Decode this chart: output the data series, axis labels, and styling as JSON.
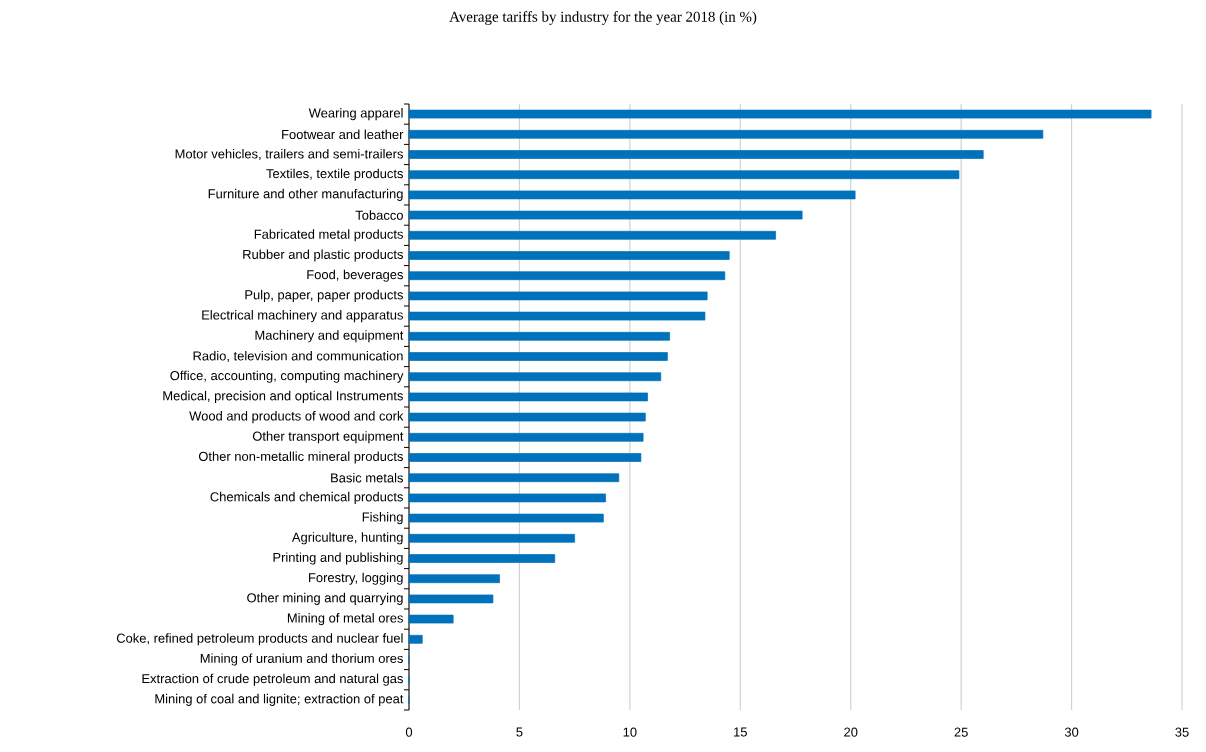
{
  "chart_data": {
    "type": "bar",
    "orientation": "horizontal",
    "title": "Average tariffs by industry for the year 2018 (in %)",
    "categories": [
      "Wearing apparel",
      "Footwear and leather",
      "Motor vehicles, trailers and semi-trailers",
      "Textiles, textile products",
      "Furniture and other manufacturing",
      "Tobacco",
      "Fabricated metal products",
      "Rubber and plastic products",
      "Food, beverages",
      "Pulp, paper, paper products",
      "Electrical machinery and apparatus",
      "Machinery and equipment",
      "Radio, television and communication",
      "Office, accounting, computing machinery",
      "Medical, precision and optical Instruments",
      "Wood and products of wood and cork",
      "Other transport equipment",
      "Other non-metallic mineral products",
      "Basic metals",
      "Chemicals and chemical products",
      "Fishing",
      "Agriculture, hunting",
      "Printing and publishing",
      "Forestry, logging",
      "Other mining and quarrying",
      "Mining of metal ores",
      "Coke, refined petroleum products and nuclear fuel",
      "Mining of uranium and thorium ores",
      "Extraction of crude petroleum and natural gas",
      "Mining of coal and lignite; extraction of peat"
    ],
    "values": [
      33.6,
      28.7,
      26.0,
      24.9,
      20.2,
      17.8,
      16.6,
      14.5,
      14.3,
      13.5,
      13.4,
      11.8,
      11.7,
      11.4,
      10.8,
      10.7,
      10.6,
      10.5,
      9.5,
      8.9,
      8.8,
      7.5,
      6.6,
      4.1,
      3.8,
      2.0,
      0.6,
      0,
      0,
      0
    ],
    "color": "#0072bc",
    "xlim": [
      0,
      35
    ],
    "xticks": [
      0,
      5,
      10,
      15,
      20,
      25,
      30,
      35
    ],
    "grid": "x"
  }
}
